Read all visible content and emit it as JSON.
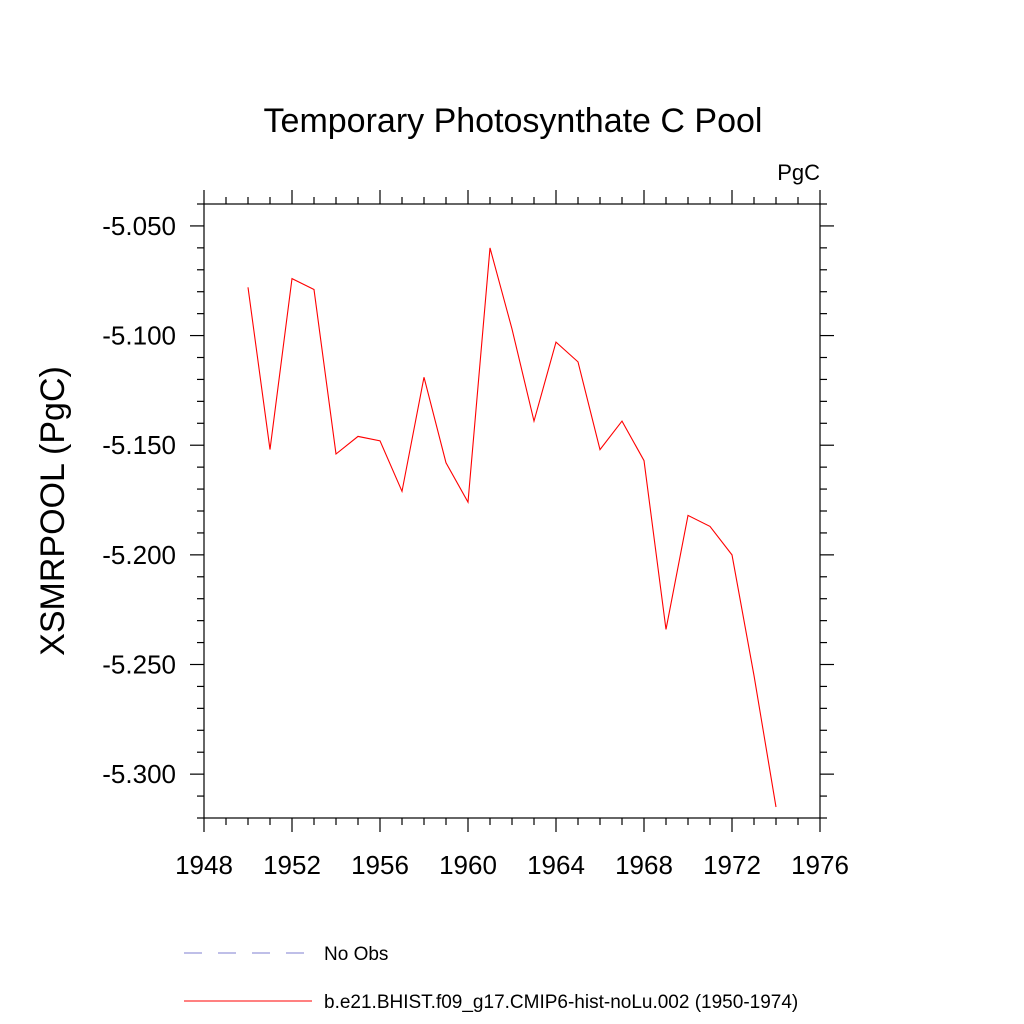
{
  "chart_data": {
    "type": "line",
    "title": "Temporary Photosynthate C Pool",
    "units_label": "PgC",
    "xlabel": "",
    "ylabel": "XSMRPOOL  (PgC)",
    "xlim": [
      1948,
      1976
    ],
    "ylim": [
      -5.32,
      -5.04
    ],
    "x_ticks": [
      "1948",
      "1952",
      "1956",
      "1960",
      "1964",
      "1968",
      "1972",
      "1976"
    ],
    "y_ticks": [
      "-5.050",
      "-5.100",
      "-5.150",
      "-5.200",
      "-5.250",
      "-5.300"
    ],
    "series": [
      {
        "name": "b.e21.BHIST.f09_g17.CMIP6-hist-noLu.002 (1950-1974)",
        "color": "#ff0000",
        "x": [
          1950,
          1951,
          1952,
          1953,
          1954,
          1955,
          1956,
          1957,
          1958,
          1959,
          1960,
          1961,
          1962,
          1963,
          1964,
          1965,
          1966,
          1967,
          1968,
          1969,
          1970,
          1971,
          1972,
          1973,
          1974
        ],
        "y": [
          -5.078,
          -5.152,
          -5.074,
          -5.079,
          -5.154,
          -5.146,
          -5.148,
          -5.171,
          -5.119,
          -5.158,
          -5.176,
          -5.06,
          -5.097,
          -5.139,
          -5.103,
          -5.112,
          -5.152,
          -5.139,
          -5.157,
          -5.234,
          -5.182,
          -5.187,
          -5.2,
          -5.255,
          -5.315
        ]
      }
    ],
    "legend": [
      {
        "label": "No Obs",
        "color": "#7f7fd0",
        "style": "dashed"
      },
      {
        "label": "b.e21.BHIST.f09_g17.CMIP6-hist-noLu.002 (1950-1974)",
        "color": "#ff0000",
        "style": "solid"
      }
    ],
    "grid": false,
    "legend_position": "bottom"
  }
}
